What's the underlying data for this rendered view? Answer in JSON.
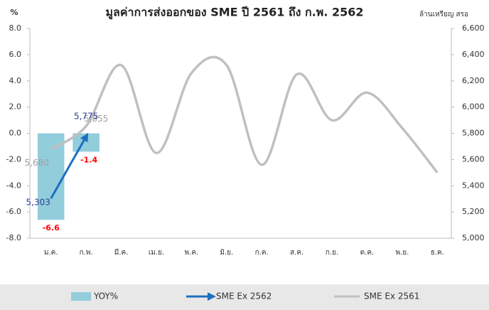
{
  "chart_data": {
    "type": "bar",
    "title": "มูลค่าการส่งออกของ SME ปี 2561 ถึง ก.พ. 2562",
    "y_label": "%",
    "y2_label": "ล้านเหรียญ สรอ",
    "categories": [
      "ม.ค.",
      "ก.พ.",
      "มี.ค.",
      "เม.ย.",
      "พ.ค.",
      "มิ.ย.",
      "ก.ค.",
      "ส.ค.",
      "ก.ย.",
      "ต.ค.",
      "พ.ย.",
      "ธ.ค."
    ],
    "ylim": [
      -8,
      8
    ],
    "yticks": [
      {
        "value": -8,
        "label": "-8.0"
      },
      {
        "value": -6,
        "label": "-6.0"
      },
      {
        "value": -4,
        "label": "-4.0"
      },
      {
        "value": -2,
        "label": "-2.0"
      },
      {
        "value": 0,
        "label": "0.0"
      },
      {
        "value": 2,
        "label": "2.0"
      },
      {
        "value": 4,
        "label": "4.0"
      },
      {
        "value": 6,
        "label": "6.0"
      },
      {
        "value": 8,
        "label": "8.0"
      }
    ],
    "y2lim": [
      5000,
      6600
    ],
    "y2ticks": [
      {
        "value": 5000,
        "label": "5,000"
      },
      {
        "value": 5200,
        "label": "5,200"
      },
      {
        "value": 5400,
        "label": "5,400"
      },
      {
        "value": 5600,
        "label": "5,600"
      },
      {
        "value": 5800,
        "label": "5,800"
      },
      {
        "value": 6000,
        "label": "6,000"
      },
      {
        "value": 6200,
        "label": "6,200"
      },
      {
        "value": 6400,
        "label": "6,400"
      },
      {
        "value": 6600,
        "label": "6,600"
      }
    ],
    "series": [
      {
        "name": "YOY%",
        "type": "bar",
        "color": "#92cddc",
        "label_color": "#ff0000",
        "values": [
          -6.6,
          -1.4,
          null,
          null,
          null,
          null,
          null,
          null,
          null,
          null,
          null,
          null
        ]
      },
      {
        "name": "SME Ex 2562",
        "type": "arrow",
        "axis": "y2",
        "color": "#1f6fbf",
        "label_color": "#2f3f8f",
        "values": [
          5303,
          5775,
          null,
          null,
          null,
          null,
          null,
          null,
          null,
          null,
          null,
          null
        ],
        "value_labels": [
          "5,303",
          "5,775",
          null,
          null,
          null,
          null,
          null,
          null,
          null,
          null,
          null,
          null
        ]
      },
      {
        "name": "SME Ex 2561",
        "type": "line",
        "axis": "y2",
        "color": "#c0c0c0",
        "label_color": "#a0a0a0",
        "values": [
          5680,
          5855,
          6320,
          5650,
          6260,
          6320,
          5560,
          6250,
          5900,
          6110,
          5840,
          5500
        ],
        "value_labels": [
          "5,680",
          "5,855",
          null,
          null,
          null,
          null,
          null,
          null,
          null,
          null,
          null,
          null
        ]
      }
    ]
  }
}
